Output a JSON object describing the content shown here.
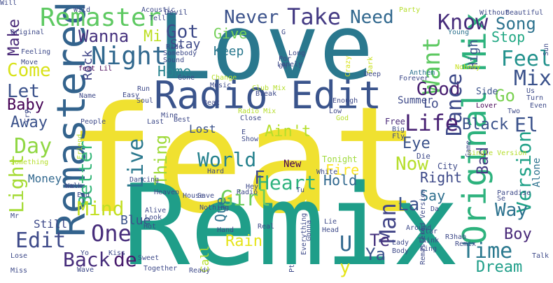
{
  "words": [
    {
      "text": "feat",
      "color": "#f0e130"
    },
    {
      "text": "Remix",
      "color": "#1f9e89"
    },
    {
      "text": "Love",
      "color": "#2a788e"
    },
    {
      "text": "Radio Edit",
      "color": "#3a548c"
    },
    {
      "text": "Remastered",
      "color": "#33638d"
    },
    {
      "text": "Original Mix",
      "color": "#2db27d"
    },
    {
      "text": "Remaster",
      "color": "#5ec962"
    },
    {
      "text": "Night",
      "color": "#31688e"
    },
    {
      "text": "Never",
      "color": "#3b528b"
    },
    {
      "text": "Take",
      "color": "#443a83"
    },
    {
      "text": "Need",
      "color": "#31688e"
    },
    {
      "text": "Know",
      "color": "#472d7b"
    },
    {
      "text": "Song",
      "color": "#2c728e"
    },
    {
      "text": "Stop",
      "color": "#22a884"
    },
    {
      "text": "Want",
      "color": "#5ec962"
    },
    {
      "text": "Feel",
      "color": "#21918c"
    },
    {
      "text": "Mix",
      "color": "#3b528b"
    },
    {
      "text": "Go",
      "color": "#7ad151"
    },
    {
      "text": "Good",
      "color": "#481f70"
    },
    {
      "text": "Dance",
      "color": "#3e4a89"
    },
    {
      "text": "Version",
      "color": "#1fa187"
    },
    {
      "text": "Life",
      "color": "#482173"
    },
    {
      "text": "El",
      "color": "#3b528b"
    },
    {
      "text": "Black",
      "color": "#3b528b"
    },
    {
      "text": "Eye",
      "color": "#3b528b"
    },
    {
      "text": "Ain't",
      "color": "#b5de2b"
    },
    {
      "text": "World",
      "color": "#26828e"
    },
    {
      "text": "Now",
      "color": "#b5de2b"
    },
    {
      "text": "Live",
      "color": "#2a788e"
    },
    {
      "text": "Thing",
      "color": "#9fda3a"
    },
    {
      "text": "Better",
      "color": "#35b779"
    },
    {
      "text": "Money",
      "color": "#31688e"
    },
    {
      "text": "Light",
      "color": "#a5db36"
    },
    {
      "text": "Day",
      "color": "#90d743"
    },
    {
      "text": "Away",
      "color": "#3b528b"
    },
    {
      "text": "Baby",
      "color": "#440154"
    },
    {
      "text": "Let",
      "color": "#3b528b"
    },
    {
      "text": "Come",
      "color": "#d8e219"
    },
    {
      "text": "Make",
      "color": "#482878"
    },
    {
      "text": "Wanna",
      "color": "#46327e"
    },
    {
      "text": "Got",
      "color": "#3e4a89"
    },
    {
      "text": "Mi",
      "color": "#bddf26"
    },
    {
      "text": "Give",
      "color": "#73d056"
    },
    {
      "text": "Keep",
      "color": "#2a788e"
    },
    {
      "text": "Stay",
      "color": "#3e4a89"
    },
    {
      "text": "Home",
      "color": "#26828e"
    },
    {
      "text": "Rock",
      "color": "#404688"
    },
    {
      "text": "Heart",
      "color": "#2db27d"
    },
    {
      "text": "Girl",
      "color": "#6ccd5a"
    },
    {
      "text": "Fire",
      "color": "#fde725"
    },
    {
      "text": "Hold",
      "color": "#31688e"
    },
    {
      "text": "Right",
      "color": "#3e4a89"
    },
    {
      "text": "Bad",
      "color": "#443a83"
    },
    {
      "text": "Say",
      "color": "#2e6f8e"
    },
    {
      "text": "Way",
      "color": "#2c728e"
    },
    {
      "text": "La",
      "color": "#3b528b"
    },
    {
      "text": "Man",
      "color": "#414487"
    },
    {
      "text": "Mind",
      "color": "#c2df23"
    },
    {
      "text": "One",
      "color": "#472d7b"
    },
    {
      "text": "Edit",
      "color": "#3e4a89"
    },
    {
      "text": "Back",
      "color": "#472d7b"
    },
    {
      "text": "de",
      "color": "#481b6d"
    },
    {
      "text": "Rain",
      "color": "#e5e419"
    },
    {
      "text": "Ya",
      "color": "#3b528b"
    },
    {
      "text": "Te",
      "color": "#46327e"
    },
    {
      "text": "Boy",
      "color": "#482878"
    },
    {
      "text": "Time",
      "color": "#2a788e"
    },
    {
      "text": "Dream",
      "color": "#1f9e89"
    },
    {
      "text": "Blue",
      "color": "#3b528b"
    },
    {
      "text": "Still",
      "color": "#3e4a89"
    },
    {
      "text": "Lost",
      "color": "#3b528b"
    },
    {
      "text": "New",
      "color": "#440154"
    },
    {
      "text": "Que",
      "color": "#2c728e"
    },
    {
      "text": "Call",
      "color": "#b5de2b"
    },
    {
      "text": "U",
      "color": "#31688e"
    },
    {
      "text": "y",
      "color": "#e5e419"
    },
    {
      "text": "Alone",
      "color": "#2c728e"
    },
    {
      "text": "Side",
      "color": "#3b528b"
    },
    {
      "text": "Summer",
      "color": "#3e4a89"
    },
    {
      "text": "High",
      "color": "#3b528b"
    },
    {
      "text": "Lo",
      "color": "#3e4a89"
    },
    {
      "text": "Free",
      "color": "#482878"
    },
    {
      "text": "Tonight",
      "color": "#9fda3a"
    },
    {
      "text": "City",
      "color": "#3e4a89"
    },
    {
      "text": "Dark",
      "color": "#c8e020"
    },
    {
      "text": "Crazy",
      "color": "#d8e219"
    },
    {
      "text": "Deep",
      "color": "#3e4a89"
    },
    {
      "text": "Forever",
      "color": "#3e4a89"
    },
    {
      "text": "Anthem",
      "color": "#2c728e"
    },
    {
      "text": "Nobody",
      "color": "#c8e020"
    },
    {
      "text": "Young",
      "color": "#2c728e"
    },
    {
      "text": "Without",
      "color": "#3e4a89"
    },
    {
      "text": "Beautiful",
      "color": "#3e4a89"
    },
    {
      "text": "Sun",
      "color": "#3e4a89"
    },
    {
      "text": "Us",
      "color": "#3e4a89"
    },
    {
      "text": "Turn",
      "color": "#3e4a89"
    },
    {
      "text": "Even",
      "color": "#3e4a89"
    },
    {
      "text": "Two",
      "color": "#3e4a89"
    },
    {
      "text": "Lover",
      "color": "#440154"
    },
    {
      "text": "Wild",
      "color": "#3e4a89"
    },
    {
      "text": "Acoustic",
      "color": "#3e4a89"
    },
    {
      "text": "Tell",
      "color": "#3e4a89"
    },
    {
      "text": "Devil",
      "color": "#3e4a89"
    },
    {
      "text": "Party",
      "color": "#b5de2b"
    },
    {
      "text": "Original",
      "color": "#3e4a89"
    },
    {
      "text": "Feeling",
      "color": "#3e4a89"
    },
    {
      "text": "Move",
      "color": "#3e4a89"
    },
    {
      "text": "Ride",
      "color": "#3e4a89"
    },
    {
      "text": "Sound",
      "color": "#3e4a89"
    },
    {
      "text": "Somebody",
      "color": "#3e4a89"
    },
    {
      "text": "Lonely",
      "color": "#3e4a89"
    },
    {
      "text": "feat Lil",
      "color": "#440154"
    },
    {
      "text": "Por",
      "color": "#3e4a89"
    },
    {
      "text": "Oh",
      "color": "#3e4a89"
    },
    {
      "text": "Long",
      "color": "#3e4a89"
    },
    {
      "text": "Gone",
      "color": "#3e4a89"
    },
    {
      "text": "Change",
      "color": "#b5de2b"
    },
    {
      "text": "Club Mix",
      "color": "#b5de2b"
    },
    {
      "text": "Break",
      "color": "#3e4a89"
    },
    {
      "text": "Enough",
      "color": "#3e4a89"
    },
    {
      "text": "Low",
      "color": "#3e4a89"
    },
    {
      "text": "God",
      "color": "#b5de2b"
    },
    {
      "text": "Music",
      "color": "#3e4a89"
    },
    {
      "text": "Radio Mix",
      "color": "#b5de2b"
    },
    {
      "text": "Close",
      "color": "#3e4a89"
    },
    {
      "text": "Beat",
      "color": "#3e4a89"
    },
    {
      "text": "Best",
      "color": "#3e4a89"
    },
    {
      "text": "Last",
      "color": "#3e4a89"
    },
    {
      "text": "Mine",
      "color": "#3e4a89"
    },
    {
      "text": "Soul",
      "color": "#3e4a89"
    },
    {
      "text": "Run",
      "color": "#3e4a89"
    },
    {
      "text": "Easy",
      "color": "#3e4a89"
    },
    {
      "text": "Name",
      "color": "#3e4a89"
    },
    {
      "text": "People",
      "color": "#3e4a89"
    },
    {
      "text": "Cry",
      "color": "#3e4a89"
    },
    {
      "text": "Something",
      "color": "#b5de2b"
    },
    {
      "text": "Friend",
      "color": "#b5de2b"
    },
    {
      "text": "Dancing",
      "color": "#3e4a89"
    },
    {
      "text": "Hard",
      "color": "#3e4a89"
    },
    {
      "text": "White",
      "color": "#3e4a89"
    },
    {
      "text": "Fly",
      "color": "#3e4a89"
    },
    {
      "text": "Big",
      "color": "#3e4a89"
    },
    {
      "text": "Die",
      "color": "#3e4a89"
    },
    {
      "text": "Single Version",
      "color": "#b5de2b"
    },
    {
      "text": "Game",
      "color": "#3e4a89"
    },
    {
      "text": "End",
      "color": "#3e4a89"
    },
    {
      "text": "Heaven",
      "color": "#3e4a89"
    },
    {
      "text": "House",
      "color": "#3e4a89"
    },
    {
      "text": "Save",
      "color": "#3e4a89"
    },
    {
      "text": "Hey",
      "color": "#3e4a89"
    },
    {
      "text": "Radio",
      "color": "#3e4a89"
    },
    {
      "text": "Tu",
      "color": "#3e4a89"
    },
    {
      "text": "Nothing",
      "color": "#3e4a89"
    },
    {
      "text": "Alive",
      "color": "#3e4a89"
    },
    {
      "text": "Look",
      "color": "#3e4a89"
    },
    {
      "text": "Walk",
      "color": "#3e4a89"
    },
    {
      "text": "Mr",
      "color": "#3e4a89"
    },
    {
      "text": "Hand",
      "color": "#3e4a89"
    },
    {
      "text": "Head",
      "color": "#3e4a89"
    },
    {
      "text": "Lie",
      "color": "#3e4a89"
    },
    {
      "text": "Da",
      "color": "#3e4a89"
    },
    {
      "text": "Se",
      "color": "#3e4a89"
    },
    {
      "text": "Paradise",
      "color": "#3e4a89"
    },
    {
      "text": "Star",
      "color": "#3e4a89"
    },
    {
      "text": "Think",
      "color": "#3e4a89"
    },
    {
      "text": "R3hab",
      "color": "#3e4a89"
    },
    {
      "text": "Remix",
      "color": "#3e4a89"
    },
    {
      "text": "Lady",
      "color": "#3e4a89"
    },
    {
      "text": "Body",
      "color": "#3e4a89"
    },
    {
      "text": "King",
      "color": "#3e4a89"
    },
    {
      "text": "Around",
      "color": "#3e4a89"
    },
    {
      "text": "Pt",
      "color": "#3e4a89"
    },
    {
      "text": "Everything",
      "color": "#3e4a89"
    },
    {
      "text": "Gonna",
      "color": "#3e4a89"
    },
    {
      "text": "Real",
      "color": "#3e4a89"
    },
    {
      "text": "Yo",
      "color": "#3e4a89"
    },
    {
      "text": "Kiss",
      "color": "#3e4a89"
    },
    {
      "text": "Sweet",
      "color": "#3e4a89"
    },
    {
      "text": "Wave",
      "color": "#3e4a89"
    },
    {
      "text": "Together",
      "color": "#3e4a89"
    },
    {
      "text": "Ready",
      "color": "#3e4a89"
    },
    {
      "text": "Lose",
      "color": "#3e4a89"
    },
    {
      "text": "Miss",
      "color": "#3e4a89"
    },
    {
      "text": "Remastered Version",
      "color": "#3e4a89"
    },
    {
      "text": "Talk",
      "color": "#3e4a89"
    },
    {
      "text": "Hot",
      "color": "#3e4a89"
    },
    {
      "text": "F",
      "color": "#3e4a89"
    },
    {
      "text": "E",
      "color": "#3e4a89"
    },
    {
      "text": "x",
      "color": "#3e4a89"
    },
    {
      "text": "G",
      "color": "#3e4a89"
    },
    {
      "text": "o",
      "color": "#3e4a89"
    },
    {
      "text": "Show",
      "color": "#3e4a89"
    },
    {
      "text": "Will",
      "color": "#3e4a89"
    }
  ]
}
